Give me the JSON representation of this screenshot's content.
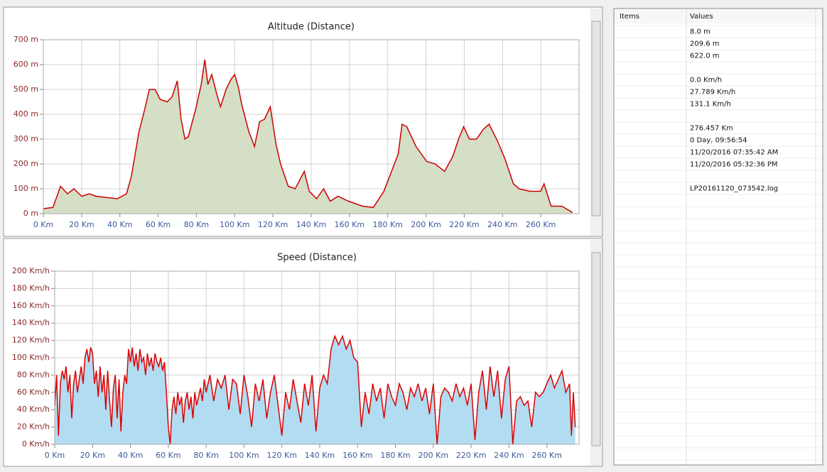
{
  "chart_data": [
    {
      "type": "area",
      "title": "Altitude (Distance)",
      "color": "#cc0000",
      "fill": "#d4dfc6",
      "grid": true,
      "x": [
        0,
        5,
        9,
        12.6,
        16,
        20,
        24,
        27.5,
        33,
        38.7,
        43.5,
        46,
        50,
        53,
        55.4,
        58.4,
        61,
        64.7,
        67.3,
        70,
        72,
        74,
        75.8,
        79.6,
        82.5,
        84.4,
        86,
        88,
        90.7,
        92.6,
        95.5,
        98,
        100,
        101.9,
        103.7,
        107.4,
        110.4,
        113,
        115.6,
        118.6,
        121.6,
        124,
        128,
        131.6,
        136.4,
        139,
        142.8,
        146.5,
        150,
        154,
        159.5,
        167,
        172.5,
        178,
        182.5,
        185.5,
        187.5,
        190,
        194.8,
        200.4,
        204.8,
        209.7,
        214,
        217,
        219.7,
        222.7,
        226.4,
        230,
        233,
        237.5,
        241.3,
        245.7,
        248.7,
        254.3,
        260,
        261.7,
        265.4,
        271,
        276.5
      ],
      "values": [
        20,
        25,
        110,
        80,
        100,
        70,
        80,
        70,
        65,
        60,
        80,
        150,
        330,
        420,
        500,
        500,
        460,
        450,
        470,
        535,
        380,
        300,
        310,
        420,
        520,
        620,
        520,
        560,
        480,
        430,
        500,
        540,
        560,
        510,
        440,
        330,
        270,
        370,
        380,
        430,
        280,
        200,
        110,
        100,
        170,
        90,
        60,
        100,
        50,
        70,
        50,
        30,
        25,
        90,
        180,
        240,
        360,
        350,
        270,
        210,
        200,
        170,
        230,
        300,
        350,
        300,
        300,
        340,
        360,
        290,
        220,
        120,
        100,
        90,
        90,
        120,
        30,
        30,
        5
      ],
      "xlim": [
        0,
        280
      ],
      "ylim": [
        0,
        700
      ],
      "xticks": [
        {
          "value": 0,
          "label": "0 Km"
        },
        {
          "value": 20,
          "label": "20 Km"
        },
        {
          "value": 40,
          "label": "40 Km"
        },
        {
          "value": 60,
          "label": "60 Km"
        },
        {
          "value": 80,
          "label": "80 Km"
        },
        {
          "value": 100,
          "label": "100 Km"
        },
        {
          "value": 120,
          "label": "120 Km"
        },
        {
          "value": 140,
          "label": "140 Km"
        },
        {
          "value": 160,
          "label": "160 Km"
        },
        {
          "value": 180,
          "label": "180 Km"
        },
        {
          "value": 200,
          "label": "200 Km"
        },
        {
          "value": 220,
          "label": "220 Km"
        },
        {
          "value": 240,
          "label": "240 Km"
        },
        {
          "value": 260,
          "label": "260 Km"
        }
      ],
      "yticks": [
        {
          "value": 0,
          "label": "0 m"
        },
        {
          "value": 100,
          "label": "100 m"
        },
        {
          "value": 200,
          "label": "200 m"
        },
        {
          "value": 300,
          "label": "300 m"
        },
        {
          "value": 400,
          "label": "400 m"
        },
        {
          "value": 500,
          "label": "500 m"
        },
        {
          "value": 600,
          "label": "600 m"
        },
        {
          "value": 700,
          "label": "700 m"
        }
      ]
    },
    {
      "type": "area",
      "title": "Speed (Distance)",
      "color": "#dd0000",
      "fill": "#b2dcf2",
      "grid": true,
      "x": [
        0,
        1,
        2,
        3,
        4,
        5,
        6,
        7,
        8,
        9,
        10,
        11,
        12,
        13,
        14,
        15,
        16,
        17,
        18,
        19,
        20,
        21,
        22,
        23,
        24,
        25,
        26,
        27,
        28,
        29,
        30,
        31,
        32,
        33,
        34,
        35,
        36,
        37,
        38,
        39,
        40,
        41,
        42,
        43,
        44,
        45,
        46,
        47,
        48,
        49,
        50,
        51,
        52,
        53,
        54,
        55,
        56,
        57,
        58,
        59,
        60,
        61,
        62,
        63,
        64,
        65,
        66,
        67,
        68,
        69,
        70,
        71,
        72,
        73,
        74,
        75,
        76,
        77,
        78,
        79,
        80,
        82,
        84,
        86,
        88,
        90,
        92,
        94,
        96,
        98,
        100,
        102,
        104,
        106,
        108,
        110,
        112,
        114,
        116,
        118,
        120,
        122,
        124,
        126,
        128,
        130,
        132,
        134,
        136,
        138,
        140,
        142,
        144,
        146,
        148,
        150,
        152,
        154,
        156,
        158,
        160,
        162,
        164,
        166,
        168,
        170,
        172,
        174,
        176,
        178,
        180,
        182,
        184,
        186,
        188,
        190,
        192,
        194,
        196,
        198,
        200,
        202,
        204,
        206,
        208,
        210,
        212,
        214,
        216,
        218,
        220,
        222,
        224,
        226,
        228,
        230,
        232,
        234,
        236,
        238,
        240,
        242,
        244,
        246,
        248,
        250,
        252,
        254,
        256,
        258,
        260,
        262,
        264,
        266,
        268,
        270,
        272,
        273,
        274,
        275
      ],
      "values": [
        45,
        80,
        10,
        70,
        85,
        75,
        90,
        60,
        80,
        30,
        70,
        85,
        60,
        75,
        90,
        70,
        100,
        110,
        95,
        112,
        105,
        70,
        85,
        55,
        90,
        60,
        80,
        40,
        85,
        50,
        20,
        65,
        80,
        30,
        75,
        15,
        60,
        80,
        70,
        110,
        95,
        112,
        90,
        105,
        85,
        110,
        95,
        100,
        80,
        105,
        90,
        100,
        85,
        105,
        95,
        90,
        100,
        85,
        95,
        60,
        20,
        0,
        40,
        55,
        35,
        60,
        45,
        55,
        25,
        50,
        60,
        40,
        55,
        30,
        60,
        45,
        55,
        65,
        50,
        75,
        60,
        80,
        50,
        75,
        65,
        80,
        40,
        75,
        70,
        35,
        80,
        55,
        20,
        70,
        50,
        75,
        30,
        60,
        80,
        45,
        10,
        60,
        40,
        75,
        50,
        25,
        70,
        45,
        80,
        15,
        65,
        80,
        70,
        110,
        125,
        115,
        125,
        110,
        120,
        100,
        95,
        20,
        60,
        35,
        70,
        50,
        65,
        30,
        70,
        55,
        45,
        70,
        60,
        40,
        65,
        55,
        70,
        50,
        65,
        35,
        70,
        0,
        55,
        65,
        60,
        50,
        70,
        55,
        65,
        45,
        70,
        5,
        60,
        85,
        40,
        90,
        55,
        85,
        30,
        75,
        90,
        0,
        50,
        55,
        45,
        50,
        20,
        60,
        55,
        60,
        70,
        80,
        65,
        75,
        85,
        60,
        70,
        10,
        60,
        20
      ],
      "xlim": [
        0,
        277
      ],
      "ylim": [
        0,
        200
      ],
      "xticks": [
        {
          "value": 0,
          "label": "0 Km"
        },
        {
          "value": 20,
          "label": "20 Km"
        },
        {
          "value": 40,
          "label": "40 Km"
        },
        {
          "value": 60,
          "label": "60 Km"
        },
        {
          "value": 80,
          "label": "80 Km"
        },
        {
          "value": 100,
          "label": "100 Km"
        },
        {
          "value": 120,
          "label": "120 Km"
        },
        {
          "value": 140,
          "label": "140 Km"
        },
        {
          "value": 160,
          "label": "160 Km"
        },
        {
          "value": 180,
          "label": "180 Km"
        },
        {
          "value": 200,
          "label": "200 Km"
        },
        {
          "value": 220,
          "label": "220 Km"
        },
        {
          "value": 240,
          "label": "240 Km"
        },
        {
          "value": 260,
          "label": "260 Km"
        }
      ],
      "yticks": [
        {
          "value": 0,
          "label": "0 Km/h"
        },
        {
          "value": 20,
          "label": "20 Km/h"
        },
        {
          "value": 40,
          "label": "40 Km/h"
        },
        {
          "value": 60,
          "label": "60 Km/h"
        },
        {
          "value": 80,
          "label": "80 Km/h"
        },
        {
          "value": 100,
          "label": "100 Km/h"
        },
        {
          "value": 120,
          "label": "120 Km/h"
        },
        {
          "value": 140,
          "label": "140 Km/h"
        },
        {
          "value": 160,
          "label": "160 Km/h"
        },
        {
          "value": 180,
          "label": "180 Km/h"
        },
        {
          "value": 200,
          "label": "200 Km/h"
        }
      ]
    }
  ],
  "table": {
    "headers": [
      "Items",
      "Values"
    ],
    "groups": [
      [
        "8.0 m",
        "209.6 m",
        "622.0 m"
      ],
      [
        "0.0 Km/h",
        "27.789 Km/h",
        "131.1 Km/h"
      ],
      [
        "276.457 Km",
        "0 Day, 09:56:54",
        "11/20/2016 07:35:42 AM",
        "11/20/2016 05:32:36 PM"
      ],
      [
        "LP20161120_073542.log"
      ]
    ]
  }
}
